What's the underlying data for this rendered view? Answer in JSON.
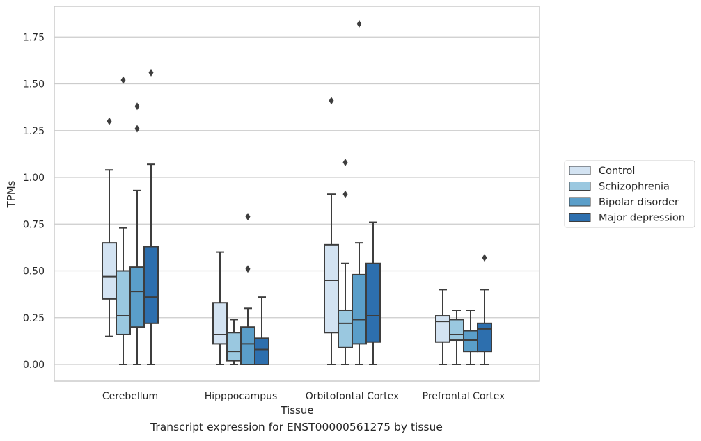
{
  "chart_data": {
    "type": "box",
    "xlabel": "Tissue",
    "ylabel": "TPMs",
    "ylim": [
      -0.09,
      1.92
    ],
    "yticks": [
      0.0,
      0.25,
      0.5,
      0.75,
      1.0,
      1.25,
      1.5,
      1.75
    ],
    "ytick_labels": [
      "0.00",
      "0.25",
      "0.50",
      "0.75",
      "1.00",
      "1.25",
      "1.50",
      "1.75"
    ],
    "grid": "horizontal",
    "legend_position": "right",
    "categories": [
      "Cerebellum",
      "Hipppocampus",
      "Orbitofontal Cortex",
      "Prefrontal Cortex"
    ],
    "series": [
      {
        "name": "Control",
        "color": "#d3e3f2",
        "boxes": [
          {
            "whislo": 0.15,
            "q1": 0.35,
            "med": 0.47,
            "q3": 0.65,
            "whishi": 1.04,
            "fliers": [
              1.3
            ]
          },
          {
            "whislo": 0.0,
            "q1": 0.11,
            "med": 0.16,
            "q3": 0.33,
            "whishi": 0.6,
            "fliers": []
          },
          {
            "whislo": 0.0,
            "q1": 0.17,
            "med": 0.45,
            "q3": 0.64,
            "whishi": 0.91,
            "fliers": [
              1.41
            ]
          },
          {
            "whislo": 0.0,
            "q1": 0.12,
            "med": 0.23,
            "q3": 0.26,
            "whishi": 0.4,
            "fliers": []
          }
        ]
      },
      {
        "name": "Schizophrenia",
        "color": "#9ac8e0",
        "boxes": [
          {
            "whislo": 0.0,
            "q1": 0.16,
            "med": 0.26,
            "q3": 0.5,
            "whishi": 0.73,
            "fliers": [
              1.52
            ]
          },
          {
            "whislo": 0.0,
            "q1": 0.02,
            "med": 0.07,
            "q3": 0.17,
            "whishi": 0.24,
            "fliers": []
          },
          {
            "whislo": 0.0,
            "q1": 0.09,
            "med": 0.22,
            "q3": 0.29,
            "whishi": 0.54,
            "fliers": [
              0.91,
              1.08
            ]
          },
          {
            "whislo": 0.0,
            "q1": 0.13,
            "med": 0.16,
            "q3": 0.24,
            "whishi": 0.29,
            "fliers": []
          }
        ]
      },
      {
        "name": "Bipolar disorder",
        "color": "#5a9ec9",
        "boxes": [
          {
            "whislo": 0.0,
            "q1": 0.2,
            "med": 0.39,
            "q3": 0.52,
            "whishi": 0.93,
            "fliers": [
              1.26,
              1.38
            ]
          },
          {
            "whislo": 0.0,
            "q1": 0.0,
            "med": 0.11,
            "q3": 0.2,
            "whishi": 0.3,
            "fliers": [
              0.51,
              0.79
            ]
          },
          {
            "whislo": 0.0,
            "q1": 0.11,
            "med": 0.24,
            "q3": 0.48,
            "whishi": 0.65,
            "fliers": [
              1.82
            ]
          },
          {
            "whislo": 0.0,
            "q1": 0.07,
            "med": 0.13,
            "q3": 0.18,
            "whishi": 0.29,
            "fliers": []
          }
        ]
      },
      {
        "name": "Major depression",
        "color": "#2d6fae",
        "boxes": [
          {
            "whislo": 0.0,
            "q1": 0.22,
            "med": 0.36,
            "q3": 0.63,
            "whishi": 1.07,
            "fliers": [
              1.56
            ]
          },
          {
            "whislo": 0.0,
            "q1": 0.0,
            "med": 0.08,
            "q3": 0.14,
            "whishi": 0.36,
            "fliers": []
          },
          {
            "whislo": 0.0,
            "q1": 0.12,
            "med": 0.26,
            "q3": 0.54,
            "whishi": 0.76,
            "fliers": []
          },
          {
            "whislo": 0.0,
            "q1": 0.07,
            "med": 0.19,
            "q3": 0.22,
            "whishi": 0.4,
            "fliers": [
              0.57
            ]
          }
        ]
      }
    ]
  },
  "caption": "Transcript expression for ENST00000561275 by tissue"
}
